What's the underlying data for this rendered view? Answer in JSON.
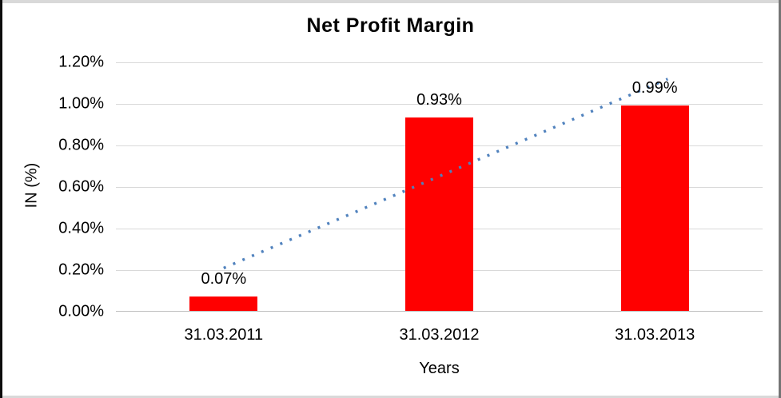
{
  "window": {
    "background": "#ffffff",
    "frame": {
      "left_edge_color": "#0d0d0d",
      "right_edge_color": "#757575",
      "top_edge_color": "#d9d9d9",
      "bottom_edge_color": "#d9d9d9"
    }
  },
  "chart_data": {
    "type": "bar",
    "title": "Net Profit Margin",
    "categories": [
      "31.03.2011",
      "31.03.2012",
      "31.03.2013"
    ],
    "values": [
      0.07,
      0.93,
      0.99
    ],
    "data_labels": [
      "0.07%",
      "0.93%",
      "0.99%"
    ],
    "xlabel": "Years",
    "ylabel": "IN (%)",
    "ylim": [
      0,
      1.2
    ],
    "ytick_labels_top_to_bottom": [
      "1.20%",
      "1.00%",
      "0.80%",
      "0.60%",
      "0.40%",
      "0.20%",
      "0.00%"
    ],
    "bar_color": "#ff0000",
    "gridline_color": "#d9d9d9",
    "axis_line_color": "#bfbfbf",
    "text_color": "#000000",
    "legend": "none",
    "grid": true,
    "trendline": {
      "style": "dotted",
      "color": "#4f81bd",
      "start": {
        "category_index": 0,
        "value": 0.21
      },
      "end": {
        "category_index": 2.06,
        "value": 1.12
      }
    }
  }
}
